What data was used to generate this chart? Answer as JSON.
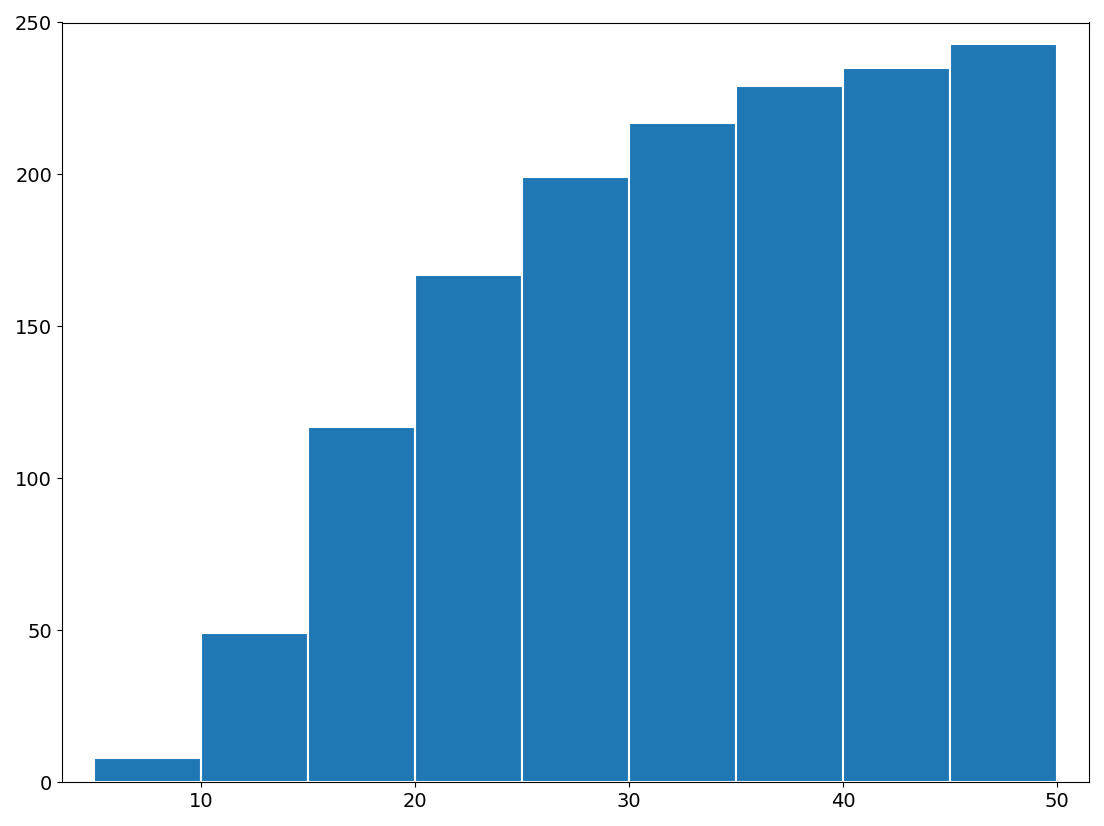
{
  "bin_edges": [
    5,
    10,
    15,
    20,
    25,
    30,
    35,
    40,
    45,
    50
  ],
  "cum_heights": [
    8,
    49,
    117,
    167,
    199,
    217,
    229,
    235,
    243
  ],
  "bar_color": "#1f77b4",
  "ylim": [
    0,
    250
  ],
  "xlim_left": 3.5,
  "xlim_right": 51.5,
  "yticks": [
    0,
    50,
    100,
    150,
    200,
    250
  ],
  "xticks": [
    10,
    20,
    30,
    40,
    50
  ],
  "background_color": "#ffffff",
  "tick_fontsize": 14,
  "edgecolor": "white",
  "edgewidth": 1.5
}
